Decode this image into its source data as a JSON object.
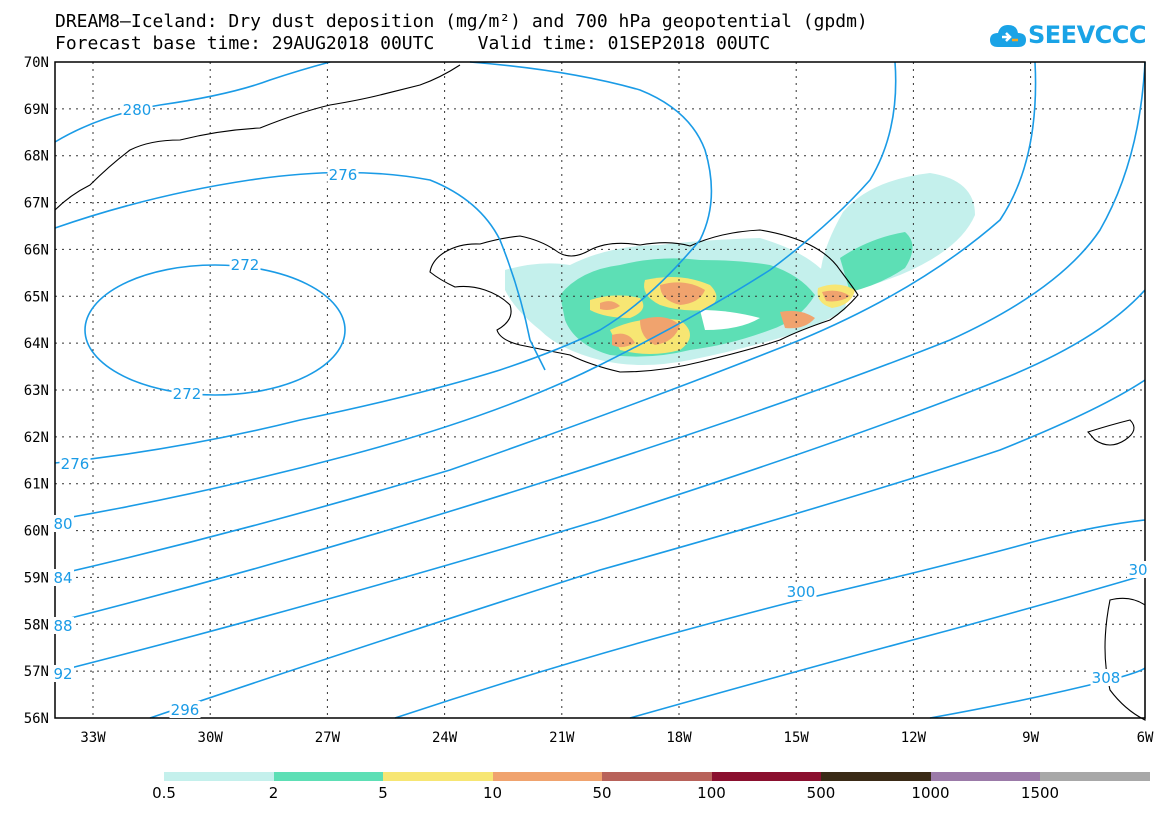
{
  "title": {
    "line1": "DREAM8–Iceland: Dry dust deposition (mg/m²) and 700 hPa geopotential (gpdm)",
    "line2": "Forecast base time: 29AUG2018 00UTC    Valid time: 01SEP2018 00UTC"
  },
  "logo": {
    "text": "SEEVCCC",
    "icon": "cloud-icon",
    "color": "#1aa3e6"
  },
  "map": {
    "lat_ticks": [
      "70N",
      "69N",
      "68N",
      "67N",
      "66N",
      "65N",
      "64N",
      "63N",
      "62N",
      "61N",
      "60N",
      "59N",
      "58N",
      "57N",
      "56N"
    ],
    "lon_ticks": [
      "33W",
      "30W",
      "27W",
      "24W",
      "21W",
      "18W",
      "15W",
      "12W",
      "9W",
      "6W"
    ],
    "contour_color": "#1a9be6",
    "contour_labels": [
      "280",
      "276",
      "272",
      "272",
      "276",
      "80",
      "84",
      "88",
      "92",
      "296",
      "300",
      "30",
      "308"
    ]
  },
  "colorbar": {
    "colors": [
      "#c4f0ec",
      "#5ddfb5",
      "#f7e673",
      "#f0a36e",
      "#b8625a",
      "#8a0f2e",
      "#3a2a16",
      "#9b7aa8",
      "#a8a8a8"
    ],
    "labels": [
      "0.5",
      "2",
      "5",
      "10",
      "50",
      "100",
      "500",
      "1000",
      "1500"
    ]
  }
}
